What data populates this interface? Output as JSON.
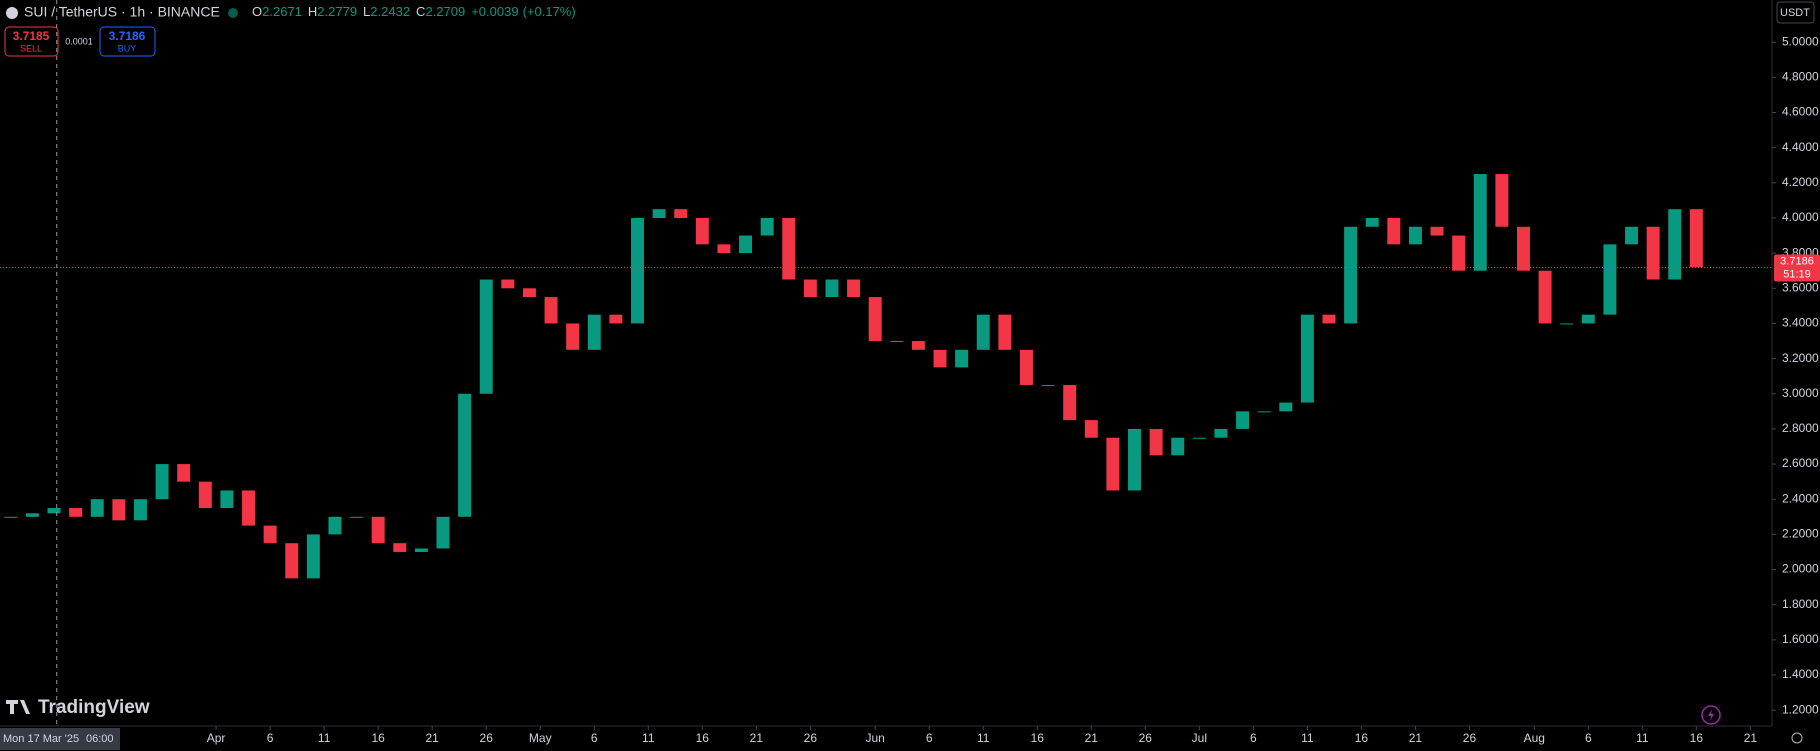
{
  "chart_data": {
    "type": "candlestick",
    "symbol": "SUI / TetherUS · 1h · BINANCE",
    "ohlc": [
      {
        "label": "O",
        "value": "2.2671"
      },
      {
        "label": "H",
        "value": "2.2779"
      },
      {
        "label": "L",
        "value": "2.2432"
      },
      {
        "label": "C",
        "value": "2.2709"
      }
    ],
    "change": "+0.0039",
    "change_pct": "(+0.17%)",
    "sell": {
      "price": 3.7185,
      "label": "SELL"
    },
    "spread": 0.0001,
    "buy": {
      "price": 3.7186,
      "label": "BUY"
    },
    "last_price": 3.7186,
    "countdown": "51:19",
    "currency": "USDT",
    "brand": "TradingView",
    "crosshair": {
      "x": "2025-03-17T06:00",
      "date_label": "Mon 17 Mar '25",
      "time_label": "06:00"
    },
    "up_color": "#089981",
    "down_color": "#f23645",
    "x": [
      "2025-03-13",
      "2025-03-15",
      "2025-03-17",
      "2025-03-19",
      "2025-03-21",
      "2025-03-23",
      "2025-03-25",
      "2025-03-27",
      "2025-03-29",
      "2025-03-31",
      "2025-04-02",
      "2025-04-04",
      "2025-04-06",
      "2025-04-08",
      "2025-04-10",
      "2025-04-12",
      "2025-04-14",
      "2025-04-16",
      "2025-04-18",
      "2025-04-20",
      "2025-04-22",
      "2025-04-24",
      "2025-04-26",
      "2025-04-28",
      "2025-04-30",
      "2025-05-02",
      "2025-05-04",
      "2025-05-06",
      "2025-05-08",
      "2025-05-10",
      "2025-05-12",
      "2025-05-14",
      "2025-05-16",
      "2025-05-18",
      "2025-05-20",
      "2025-05-22",
      "2025-05-24",
      "2025-05-26",
      "2025-05-28",
      "2025-05-30",
      "2025-06-01",
      "2025-06-03",
      "2025-06-05",
      "2025-06-07",
      "2025-06-09",
      "2025-06-11",
      "2025-06-13",
      "2025-06-15",
      "2025-06-17",
      "2025-06-19",
      "2025-06-21",
      "2025-06-23",
      "2025-06-25",
      "2025-06-27",
      "2025-06-29",
      "2025-07-01",
      "2025-07-03",
      "2025-07-05",
      "2025-07-07",
      "2025-07-09",
      "2025-07-11",
      "2025-07-13",
      "2025-07-15",
      "2025-07-17",
      "2025-07-19",
      "2025-07-21",
      "2025-07-23",
      "2025-07-25",
      "2025-07-27",
      "2025-07-29",
      "2025-07-31",
      "2025-08-02",
      "2025-08-04",
      "2025-08-06",
      "2025-08-08",
      "2025-08-10",
      "2025-08-12",
      "2025-08-14",
      "2025-08-16"
    ],
    "values": [
      2.3,
      2.32,
      2.35,
      2.3,
      2.4,
      2.28,
      2.4,
      2.6,
      2.5,
      2.35,
      2.45,
      2.25,
      2.15,
      1.95,
      2.2,
      2.3,
      2.3,
      2.15,
      2.1,
      2.12,
      2.3,
      3.0,
      3.65,
      3.6,
      3.55,
      3.4,
      3.25,
      3.45,
      3.4,
      4.0,
      4.05,
      4.0,
      3.85,
      3.8,
      3.9,
      4.0,
      3.65,
      3.55,
      3.65,
      3.55,
      3.3,
      3.3,
      3.25,
      3.15,
      3.25,
      3.45,
      3.25,
      3.05,
      3.05,
      2.85,
      2.75,
      2.45,
      2.8,
      2.65,
      2.75,
      2.75,
      2.8,
      2.9,
      2.9,
      2.95,
      3.45,
      3.4,
      3.95,
      4.0,
      3.85,
      3.95,
      3.9,
      3.7,
      4.25,
      3.95,
      3.7,
      3.4,
      3.4,
      3.45,
      3.85,
      3.95,
      3.65,
      4.05,
      3.72
    ],
    "xlim": [
      "2025-03-12",
      "2025-08-23"
    ],
    "ylim": [
      1.11,
      5.24
    ],
    "yticks": [
      {
        "value": 1.2,
        "label": "1.2000"
      },
      {
        "value": 1.4,
        "label": "1.4000"
      },
      {
        "value": 1.6,
        "label": "1.6000"
      },
      {
        "value": 1.8,
        "label": "1.8000"
      },
      {
        "value": 2.0,
        "label": "2.0000"
      },
      {
        "value": 2.2,
        "label": "2.2000"
      },
      {
        "value": 2.4,
        "label": "2.4000"
      },
      {
        "value": 2.6,
        "label": "2.6000"
      },
      {
        "value": 2.8,
        "label": "2.8000"
      },
      {
        "value": 3.0,
        "label": "3.0000"
      },
      {
        "value": 3.2,
        "label": "3.2000"
      },
      {
        "value": 3.4,
        "label": "3.4000"
      },
      {
        "value": 3.6,
        "label": "3.6000"
      },
      {
        "value": 3.8,
        "label": "3.8000"
      },
      {
        "value": 4.0,
        "label": "4.0000"
      },
      {
        "value": 4.2,
        "label": "4.2000"
      },
      {
        "value": 4.4,
        "label": "4.4000"
      },
      {
        "value": 4.6,
        "label": "4.6000"
      },
      {
        "value": 4.8,
        "label": "4.8000"
      },
      {
        "value": 5.0,
        "label": "5.0000"
      }
    ],
    "xticks": [
      {
        "value": "2025-04-01",
        "label": "Apr"
      },
      {
        "value": "2025-04-06",
        "label": "6"
      },
      {
        "value": "2025-04-11",
        "label": "11"
      },
      {
        "value": "2025-04-16",
        "label": "16"
      },
      {
        "value": "2025-04-21",
        "label": "21"
      },
      {
        "value": "2025-04-26",
        "label": "26"
      },
      {
        "value": "2025-05-01",
        "label": "May"
      },
      {
        "value": "2025-05-06",
        "label": "6"
      },
      {
        "value": "2025-05-11",
        "label": "11"
      },
      {
        "value": "2025-05-16",
        "label": "16"
      },
      {
        "value": "2025-05-21",
        "label": "21"
      },
      {
        "value": "2025-05-26",
        "label": "26"
      },
      {
        "value": "2025-06-01",
        "label": "Jun"
      },
      {
        "value": "2025-06-06",
        "label": "6"
      },
      {
        "value": "2025-06-11",
        "label": "11"
      },
      {
        "value": "2025-06-16",
        "label": "16"
      },
      {
        "value": "2025-06-21",
        "label": "21"
      },
      {
        "value": "2025-06-26",
        "label": "26"
      },
      {
        "value": "2025-07-01",
        "label": "Jul"
      },
      {
        "value": "2025-07-06",
        "label": "6"
      },
      {
        "value": "2025-07-11",
        "label": "11"
      },
      {
        "value": "2025-07-16",
        "label": "16"
      },
      {
        "value": "2025-07-21",
        "label": "21"
      },
      {
        "value": "2025-07-26",
        "label": "26"
      },
      {
        "value": "2025-08-01",
        "label": "Aug"
      },
      {
        "value": "2025-08-06",
        "label": "6"
      },
      {
        "value": "2025-08-11",
        "label": "11"
      },
      {
        "value": "2025-08-16",
        "label": "16"
      },
      {
        "value": "2025-08-21",
        "label": "21"
      }
    ]
  }
}
